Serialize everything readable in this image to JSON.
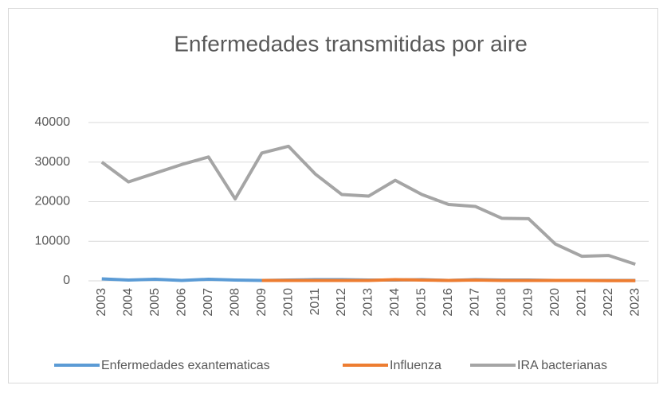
{
  "chart_data": {
    "type": "line",
    "title": "Enfermedades transmitidas por aire",
    "categories": [
      "2003",
      "2004",
      "2005",
      "2006",
      "2007",
      "2008",
      "2009",
      "2010",
      "2011",
      "2012",
      "2013",
      "2014",
      "2015",
      "2016",
      "2017",
      "2018",
      "2019",
      "2020",
      "2021",
      "2022",
      "2023"
    ],
    "series": [
      {
        "name": "Enfermedades exantematicas",
        "color": "#5b9bd5",
        "values": [
          500,
          200,
          400,
          100,
          400,
          200,
          100,
          200,
          300,
          300,
          200,
          200,
          300,
          100,
          300,
          200,
          200,
          100,
          100,
          100,
          100
        ]
      },
      {
        "name": "Influenza",
        "color": "#ed7d31",
        "values": [
          null,
          null,
          null,
          null,
          null,
          null,
          100,
          100,
          100,
          100,
          100,
          300,
          200,
          100,
          200,
          100,
          100,
          100,
          100,
          50,
          50
        ]
      },
      {
        "name": "IRA bacterianas",
        "color": "#a5a5a5",
        "values": [
          30000,
          25000,
          27200,
          29400,
          31300,
          20700,
          32300,
          34000,
          27000,
          21800,
          21400,
          25400,
          21800,
          19300,
          18800,
          15800,
          15700,
          9300,
          6200,
          6400,
          4200
        ]
      }
    ],
    "ylim": [
      0,
      40000
    ],
    "yticks": [
      0,
      10000,
      20000,
      30000,
      40000
    ],
    "grid": true,
    "legend": "bottom"
  }
}
